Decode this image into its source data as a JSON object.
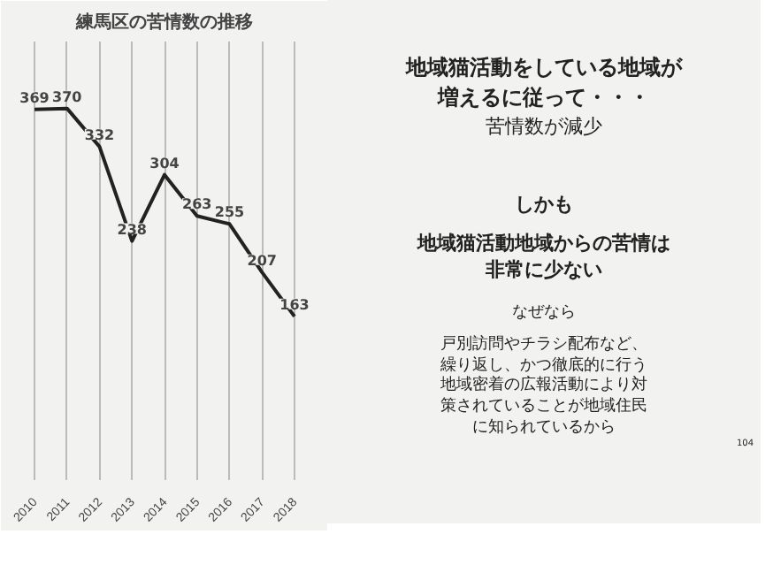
{
  "chart_data": {
    "type": "line",
    "title": "練馬区の苦情数の推移",
    "categories": [
      "2010",
      "2011",
      "2012",
      "2013",
      "2014",
      "2015",
      "2016",
      "2017",
      "2018"
    ],
    "series": [
      {
        "color": "#222222",
        "values": [
          369,
          370,
          332,
          238,
          304,
          263,
          255,
          207,
          163
        ]
      }
    ],
    "data_labels": true,
    "grid": "x",
    "tick_labels": "x",
    "marker": "none",
    "line_style": "solid",
    "annotations": [
      "地域猫活動をしている地域が増えるに従って・・・",
      "苦情数が減少",
      "しかも",
      "地域猫活動地域からの苦情は非常に少ない",
      "なぜなら",
      "戸別訪問やチラシ配布など、繰り返し、かつ徹底的に行う地域密着の広報活動により対策されていることが地域住民に知られているから",
      "104"
    ]
  }
}
